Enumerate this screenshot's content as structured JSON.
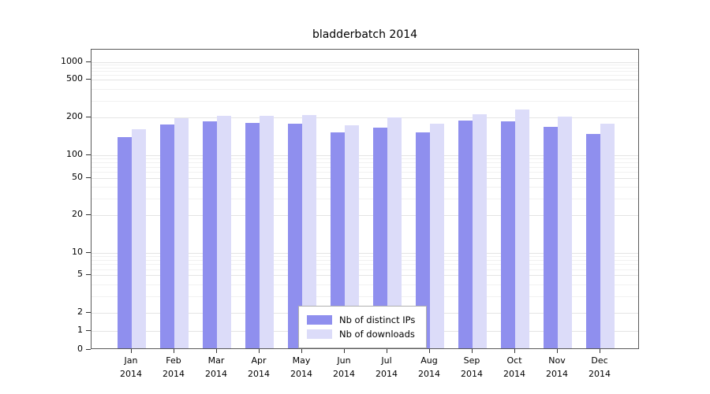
{
  "chart_data": {
    "type": "bar",
    "title": "bladderbatch 2014",
    "year": "2014",
    "categories": [
      "Jan",
      "Feb",
      "Mar",
      "Apr",
      "May",
      "Jun",
      "Jul",
      "Aug",
      "Sep",
      "Oct",
      "Nov",
      "Dec"
    ],
    "series": [
      {
        "name": "Nb of distinct IPs",
        "color": "#8f8fee",
        "values": [
          140,
          175,
          185,
          180,
          178,
          152,
          165,
          152,
          190,
          186,
          168,
          148
        ]
      },
      {
        "name": "Nb of downloads",
        "color": "#dcdcf9",
        "values": [
          160,
          196,
          208,
          208,
          212,
          173,
          199,
          178,
          216,
          241,
          204,
          178
        ]
      }
    ],
    "y_ticks": [
      0,
      1,
      2,
      5,
      10,
      20,
      50,
      100,
      200,
      500,
      1000
    ],
    "y_scale": "log-like",
    "ylim": [
      0,
      1300
    ],
    "grid": true,
    "legend_position": "bottom-center"
  }
}
